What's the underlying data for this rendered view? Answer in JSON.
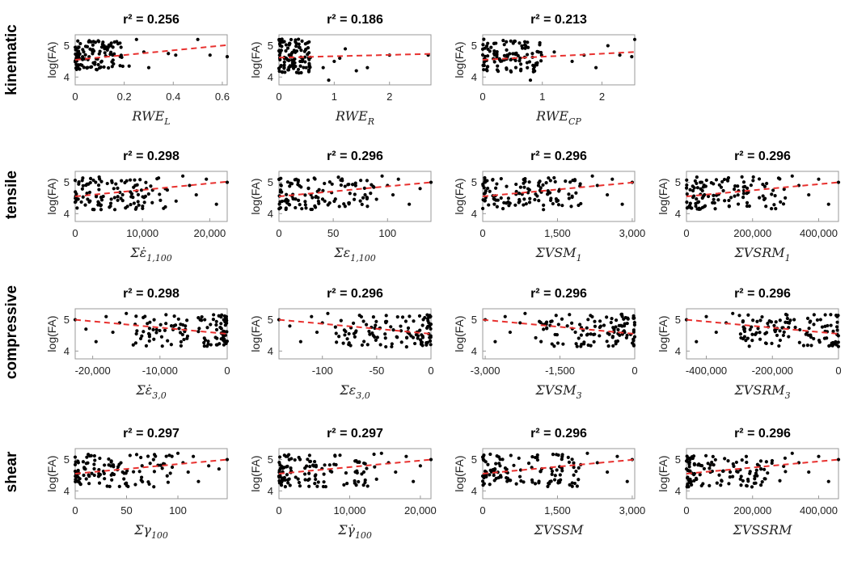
{
  "figure": {
    "row_labels": [
      "kinematic",
      "tensile",
      "compressive",
      "shear"
    ],
    "ylabel": "log(FA)"
  },
  "chart_data": [
    {
      "type": "scatter",
      "row": "kinematic",
      "col": 0,
      "title": "r² = 0.256",
      "r2": 0.256,
      "xlabel_main": "RWE",
      "xlabel_sub": "L",
      "ylabel": "log(FA)",
      "xlim": [
        0,
        0.62
      ],
      "ylim": [
        3.75,
        5.35
      ],
      "xticks": [
        0,
        0.2,
        0.4,
        0.6
      ],
      "xtick_labels": [
        "0",
        "0.2",
        "0.4",
        "0.6"
      ],
      "yticks": [
        4,
        5
      ],
      "fit": {
        "x": [
          0,
          0.62
        ],
        "y": [
          4.55,
          5.02
        ]
      },
      "cluster": {
        "x": [
          0,
          0.2
        ],
        "y": [
          4.2,
          5.2
        ]
      },
      "x": [
        0.28,
        0.38,
        0.41,
        0.5,
        0.55,
        0.62,
        0.25,
        0.3,
        0.22
      ],
      "y": [
        4.8,
        4.75,
        4.7,
        5.2,
        4.7,
        4.65,
        5.2,
        4.3,
        4.35
      ],
      "point_count": 120
    },
    {
      "type": "scatter",
      "row": "kinematic",
      "col": 1,
      "title": "r² = 0.186",
      "r2": 0.186,
      "xlabel_main": "RWE",
      "xlabel_sub": "R",
      "ylabel": "log(FA)",
      "xlim": [
        0,
        2.75
      ],
      "ylim": [
        3.75,
        5.35
      ],
      "xticks": [
        0,
        1,
        2
      ],
      "xtick_labels": [
        "0",
        "1",
        "2"
      ],
      "yticks": [
        4,
        5
      ],
      "fit": {
        "x": [
          0,
          2.75
        ],
        "y": [
          4.62,
          4.74
        ]
      },
      "cluster": {
        "x": [
          0,
          0.6
        ],
        "y": [
          4.1,
          5.25
        ]
      },
      "x": [
        0.8,
        1.0,
        1.2,
        1.4,
        1.6,
        2.0,
        2.7,
        0.9,
        1.1
      ],
      "y": [
        4.3,
        4.5,
        4.9,
        4.2,
        4.3,
        4.7,
        4.7,
        3.9,
        4.6
      ],
      "point_count": 120
    },
    {
      "type": "scatter",
      "row": "kinematic",
      "col": 2,
      "title": "r² = 0.213",
      "r2": 0.213,
      "xlabel_main": "RWE",
      "xlabel_sub": "CP",
      "ylabel": "log(FA)",
      "xlim": [
        0,
        2.55
      ],
      "ylim": [
        3.75,
        5.35
      ],
      "xticks": [
        0,
        1,
        2
      ],
      "xtick_labels": [
        "0",
        "1",
        "2"
      ],
      "yticks": [
        4,
        5
      ],
      "fit": {
        "x": [
          0,
          2.55
        ],
        "y": [
          4.55,
          4.8
        ]
      },
      "cluster": {
        "x": [
          0,
          1.0
        ],
        "y": [
          4.1,
          5.25
        ]
      },
      "x": [
        1.2,
        1.5,
        1.7,
        1.9,
        2.1,
        2.3,
        2.5,
        2.55,
        0.8
      ],
      "y": [
        4.8,
        4.5,
        4.7,
        4.3,
        5.0,
        4.7,
        4.65,
        5.2,
        3.9
      ],
      "point_count": 120
    },
    {
      "type": "scatter",
      "row": "tensile",
      "col": 0,
      "title": "r² = 0.298",
      "r2": 0.298,
      "xlabel_main": "Σε̇",
      "xlabel_sub": "1,100",
      "ylabel": "log(FA)",
      "xlim": [
        0,
        22600
      ],
      "ylim": [
        3.75,
        5.35
      ],
      "xticks": [
        0,
        10000,
        20000
      ],
      "xtick_labels": [
        "0",
        "10,000",
        "20,000"
      ],
      "yticks": [
        4,
        5
      ],
      "fit": {
        "x": [
          0,
          22600
        ],
        "y": [
          4.55,
          5.02
        ]
      },
      "cluster": {
        "x": [
          0,
          14000
        ],
        "y": [
          4.1,
          5.2
        ]
      },
      "x": [
        16000,
        17000,
        18000,
        19500,
        21000,
        22600,
        15000
      ],
      "y": [
        5.2,
        4.9,
        4.6,
        5.1,
        4.3,
        5.0,
        4.4
      ],
      "point_count": 120
    },
    {
      "type": "scatter",
      "row": "tensile",
      "col": 1,
      "title": "r² = 0.296",
      "r2": 0.296,
      "xlabel_main": "Σε",
      "xlabel_sub": "1,100",
      "ylabel": "log(FA)",
      "xlim": [
        0,
        140
      ],
      "ylim": [
        3.75,
        5.35
      ],
      "xticks": [
        0,
        50,
        100
      ],
      "xtick_labels": [
        "0",
        "50",
        "100"
      ],
      "yticks": [
        4,
        5
      ],
      "fit": {
        "x": [
          0,
          140
        ],
        "y": [
          4.55,
          5.0
        ]
      },
      "cluster": {
        "x": [
          0,
          90
        ],
        "y": [
          4.1,
          5.2
        ]
      },
      "x": [
        95,
        100,
        105,
        110,
        120,
        130,
        140
      ],
      "y": [
        5.2,
        4.9,
        4.6,
        5.1,
        4.3,
        4.8,
        5.0
      ],
      "point_count": 120
    },
    {
      "type": "scatter",
      "row": "tensile",
      "col": 2,
      "title": "r² = 0.296",
      "r2": 0.296,
      "xlabel_main": "ΣVSM",
      "xlabel_sub": "1",
      "ylabel": "log(FA)",
      "xlim": [
        0,
        3050
      ],
      "ylim": [
        3.75,
        5.35
      ],
      "xticks": [
        0,
        1500,
        3000
      ],
      "xtick_labels": [
        "0",
        "1,500",
        "3,000"
      ],
      "yticks": [
        4,
        5
      ],
      "fit": {
        "x": [
          0,
          3050
        ],
        "y": [
          4.55,
          5.0
        ]
      },
      "cluster": {
        "x": [
          0,
          2000
        ],
        "y": [
          4.1,
          5.2
        ]
      },
      "x": [
        2200,
        2300,
        2500,
        2600,
        2800,
        3000
      ],
      "y": [
        5.2,
        4.9,
        4.6,
        5.1,
        4.3,
        5.0
      ],
      "point_count": 120
    },
    {
      "type": "scatter",
      "row": "tensile",
      "col": 3,
      "title": "r² = 0.296",
      "r2": 0.296,
      "xlabel_main": "ΣVSRM",
      "xlabel_sub": "1",
      "ylabel": "log(FA)",
      "xlim": [
        0,
        460000
      ],
      "ylim": [
        3.75,
        5.35
      ],
      "xticks": [
        0,
        200000,
        400000
      ],
      "xtick_labels": [
        "0",
        "200,000",
        "400,000"
      ],
      "yticks": [
        4,
        5
      ],
      "fit": {
        "x": [
          0,
          460000
        ],
        "y": [
          4.55,
          5.0
        ]
      },
      "cluster": {
        "x": [
          0,
          300000
        ],
        "y": [
          4.1,
          5.2
        ]
      },
      "x": [
        320000,
        340000,
        370000,
        400000,
        430000,
        460000
      ],
      "y": [
        5.2,
        4.9,
        4.6,
        5.1,
        4.3,
        5.0
      ],
      "point_count": 120
    },
    {
      "type": "scatter",
      "row": "compressive",
      "col": 0,
      "title": "r² = 0.298",
      "r2": 0.298,
      "xlabel_main": "Σε̇",
      "xlabel_sub": "3,0",
      "ylabel": "log(FA)",
      "xlim": [
        -22600,
        0
      ],
      "ylim": [
        3.75,
        5.35
      ],
      "xticks": [
        -20000,
        -10000,
        0
      ],
      "xtick_labels": [
        "-20,000",
        "-10,000",
        "0"
      ],
      "yticks": [
        4,
        5
      ],
      "fit": {
        "x": [
          -22600,
          0
        ],
        "y": [
          5.0,
          4.55
        ]
      },
      "cluster": {
        "x": [
          -14000,
          0
        ],
        "y": [
          4.1,
          5.2
        ]
      },
      "x": [
        -22600,
        -21000,
        -19500,
        -18000,
        -17000,
        -16000,
        -15000
      ],
      "y": [
        5.0,
        4.7,
        4.3,
        5.1,
        4.6,
        4.9,
        5.2
      ],
      "point_count": 120
    },
    {
      "type": "scatter",
      "row": "compressive",
      "col": 1,
      "title": "r² = 0.296",
      "r2": 0.296,
      "xlabel_main": "Σε",
      "xlabel_sub": "3,0",
      "ylabel": "log(FA)",
      "xlim": [
        -140,
        0
      ],
      "ylim": [
        3.75,
        5.35
      ],
      "xticks": [
        -100,
        -50,
        0
      ],
      "xtick_labels": [
        "-100",
        "-50",
        "0"
      ],
      "yticks": [
        4,
        5
      ],
      "fit": {
        "x": [
          -140,
          0
        ],
        "y": [
          5.0,
          4.55
        ]
      },
      "cluster": {
        "x": [
          -90,
          0
        ],
        "y": [
          4.1,
          5.2
        ]
      },
      "x": [
        -140,
        -130,
        -120,
        -110,
        -105,
        -100,
        -95
      ],
      "y": [
        5.0,
        4.8,
        4.3,
        5.1,
        4.6,
        4.9,
        5.2
      ],
      "point_count": 120
    },
    {
      "type": "scatter",
      "row": "compressive",
      "col": 2,
      "title": "r² = 0.296",
      "r2": 0.296,
      "xlabel_main": "ΣVSM",
      "xlabel_sub": "3",
      "ylabel": "log(FA)",
      "xlim": [
        -3050,
        0
      ],
      "ylim": [
        3.75,
        5.35
      ],
      "xticks": [
        -3000,
        -1500,
        0
      ],
      "xtick_labels": [
        "-3,000",
        "-1,500",
        "0"
      ],
      "yticks": [
        4,
        5
      ],
      "fit": {
        "x": [
          -3050,
          0
        ],
        "y": [
          5.0,
          4.55
        ]
      },
      "cluster": {
        "x": [
          -2000,
          0
        ],
        "y": [
          4.1,
          5.2
        ]
      },
      "x": [
        -3000,
        -2800,
        -2600,
        -2500,
        -2300,
        -2200
      ],
      "y": [
        5.0,
        4.3,
        5.1,
        4.6,
        4.9,
        5.2
      ],
      "point_count": 120
    },
    {
      "type": "scatter",
      "row": "compressive",
      "col": 3,
      "title": "r² = 0.296",
      "r2": 0.296,
      "xlabel_main": "ΣVSRM",
      "xlabel_sub": "3",
      "ylabel": "log(FA)",
      "xlim": [
        -460000,
        0
      ],
      "ylim": [
        3.75,
        5.35
      ],
      "xticks": [
        -400000,
        -200000,
        0
      ],
      "xtick_labels": [
        "-400,000",
        "-200,000",
        "0"
      ],
      "yticks": [
        4,
        5
      ],
      "fit": {
        "x": [
          -460000,
          0
        ],
        "y": [
          5.0,
          4.55
        ]
      },
      "cluster": {
        "x": [
          -300000,
          0
        ],
        "y": [
          4.1,
          5.2
        ]
      },
      "x": [
        -460000,
        -430000,
        -400000,
        -370000,
        -340000,
        -320000
      ],
      "y": [
        5.0,
        4.3,
        5.1,
        4.6,
        4.9,
        5.2
      ],
      "point_count": 120
    },
    {
      "type": "scatter",
      "row": "shear",
      "col": 0,
      "title": "r² = 0.297",
      "r2": 0.297,
      "xlabel_main": "Σγ",
      "xlabel_sub": "100",
      "ylabel": "log(FA)",
      "xlim": [
        0,
        148
      ],
      "ylim": [
        3.75,
        5.35
      ],
      "xticks": [
        0,
        50,
        100
      ],
      "xtick_labels": [
        "0",
        "50",
        "100"
      ],
      "yticks": [
        4,
        5
      ],
      "fit": {
        "x": [
          0,
          148
        ],
        "y": [
          4.55,
          5.0
        ]
      },
      "cluster": {
        "x": [
          0,
          95
        ],
        "y": [
          4.1,
          5.2
        ]
      },
      "x": [
        100,
        105,
        110,
        115,
        120,
        130,
        140,
        148
      ],
      "y": [
        5.2,
        4.9,
        4.6,
        5.1,
        4.3,
        4.8,
        4.7,
        5.0
      ],
      "point_count": 120
    },
    {
      "type": "scatter",
      "row": "shear",
      "col": 1,
      "title": "r² = 0.297",
      "r2": 0.297,
      "xlabel_main": "Σγ̇",
      "xlabel_sub": "100",
      "ylabel": "log(FA)",
      "xlim": [
        0,
        21500
      ],
      "ylim": [
        3.75,
        5.35
      ],
      "xticks": [
        0,
        10000,
        20000
      ],
      "xtick_labels": [
        "0",
        "10,000",
        "20,000"
      ],
      "yticks": [
        4,
        5
      ],
      "fit": {
        "x": [
          0,
          21500
        ],
        "y": [
          4.55,
          5.0
        ]
      },
      "cluster": {
        "x": [
          0,
          14000
        ],
        "y": [
          4.1,
          5.2
        ]
      },
      "x": [
        14500,
        15500,
        16500,
        18000,
        19000,
        20000,
        21500
      ],
      "y": [
        5.2,
        4.9,
        4.6,
        5.1,
        4.3,
        4.8,
        5.0
      ],
      "point_count": 120
    },
    {
      "type": "scatter",
      "row": "shear",
      "col": 2,
      "title": "r² = 0.296",
      "r2": 0.296,
      "xlabel_main": "ΣVSSM",
      "xlabel_sub": "",
      "ylabel": "log(FA)",
      "xlim": [
        0,
        3050
      ],
      "ylim": [
        3.75,
        5.35
      ],
      "xticks": [
        0,
        1500,
        3000
      ],
      "xtick_labels": [
        "0",
        "1,500",
        "3,000"
      ],
      "yticks": [
        4,
        5
      ],
      "fit": {
        "x": [
          0,
          3050
        ],
        "y": [
          4.55,
          5.0
        ]
      },
      "cluster": {
        "x": [
          0,
          2000
        ],
        "y": [
          4.1,
          5.2
        ]
      },
      "x": [
        2100,
        2300,
        2500,
        2700,
        2900,
        3000
      ],
      "y": [
        5.2,
        4.9,
        4.6,
        5.1,
        4.3,
        5.0
      ],
      "point_count": 120
    },
    {
      "type": "scatter",
      "row": "shear",
      "col": 3,
      "title": "r² = 0.296",
      "r2": 0.296,
      "xlabel_main": "ΣVSSRM",
      "xlabel_sub": "",
      "ylabel": "log(FA)",
      "xlim": [
        0,
        460000
      ],
      "ylim": [
        3.75,
        5.35
      ],
      "xticks": [
        0,
        200000,
        400000
      ],
      "xtick_labels": [
        "0",
        "200,000",
        "400,000"
      ],
      "yticks": [
        4,
        5
      ],
      "fit": {
        "x": [
          0,
          460000
        ],
        "y": [
          4.55,
          5.0
        ]
      },
      "cluster": {
        "x": [
          0,
          300000
        ],
        "y": [
          4.1,
          5.2
        ]
      },
      "x": [
        320000,
        340000,
        370000,
        400000,
        430000,
        460000
      ],
      "y": [
        5.2,
        4.9,
        4.6,
        5.1,
        4.3,
        5.0
      ],
      "point_count": 120
    }
  ]
}
